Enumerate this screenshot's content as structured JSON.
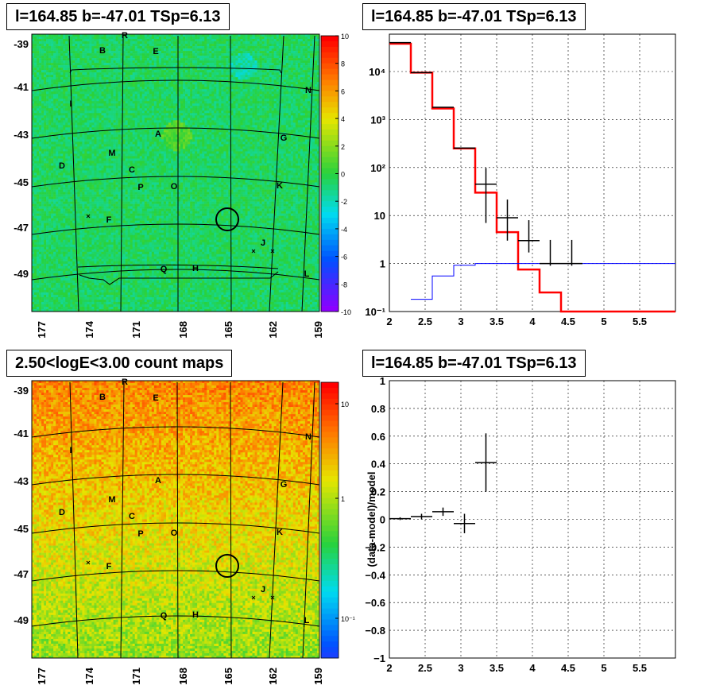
{
  "panels": {
    "top_left": {
      "title": "l=164.85 b=-47.01 TSp=6.13"
    },
    "top_right": {
      "title": "l=164.85 b=-47.01 TSp=6.13"
    },
    "bottom_left": {
      "title": "2.50<logE<3.00 count maps"
    },
    "bottom_right": {
      "title": "l=164.85 b=-47.01 TSp=6.13"
    }
  },
  "chart_data": [
    {
      "type": "heatmap",
      "panel": "top_left",
      "title": "l=164.85 b=-47.01 TSp=6.13",
      "x_ticks": [
        "177",
        "174",
        "171",
        "168",
        "165",
        "162",
        "159"
      ],
      "y_ticks": [
        "-39",
        "-41",
        "-43",
        "-45",
        "-47",
        "-49"
      ],
      "colorbar_ticks": [
        "10",
        "8",
        "6",
        "4",
        "2",
        "0",
        "-2",
        "-4",
        "-6",
        "-8",
        "-10"
      ],
      "source_labels": [
        "R",
        "B",
        "E",
        "N",
        "I",
        "A",
        "G",
        "M",
        "D",
        "C",
        "K",
        "P",
        "O",
        "F",
        "J",
        "Q",
        "H",
        "L"
      ]
    },
    {
      "type": "line",
      "panel": "top_right",
      "title": "l=164.85 b=-47.01 TSp=6.13",
      "xlim": [
        2,
        6
      ],
      "ylim": [
        0.1,
        60000
      ],
      "log_y": true,
      "grid": true,
      "x_ticks": [
        "2",
        "2.5",
        "3",
        "3.5",
        "4",
        "4.5",
        "5",
        "5.5"
      ],
      "y_ticks": [
        "10⁻¹",
        "1",
        "10",
        "10²",
        "10³",
        "10⁴"
      ],
      "series": [
        {
          "color": "#ff0000",
          "bins": [
            2,
            2.3,
            2.6,
            2.9,
            3.2,
            3.5,
            3.8,
            4.1,
            4.4,
            6
          ],
          "values": [
            38000,
            9500,
            1700,
            250,
            30,
            4.5,
            0.75,
            0.25,
            0.1
          ]
        },
        {
          "color": "#0000ff",
          "bins": [
            2.3,
            2.6,
            2.9,
            3.2,
            6
          ],
          "values": [
            0.18,
            0.55,
            0.92,
            1.0
          ]
        }
      ],
      "data_points": [
        {
          "x": 2.15,
          "y": 40000,
          "xerr": 0.15,
          "yerr_lo": 0,
          "yerr_hi": 0
        },
        {
          "x": 2.45,
          "y": 9500,
          "xerr": 0.15,
          "yerr_lo": 0,
          "yerr_hi": 0
        },
        {
          "x": 2.75,
          "y": 1800,
          "xerr": 0.15,
          "yerr_lo": 0,
          "yerr_hi": 0
        },
        {
          "x": 3.05,
          "y": 255,
          "xerr": 0.15,
          "yerr_lo": 0,
          "yerr_hi": 0
        },
        {
          "x": 3.35,
          "y": 45,
          "xerr": 0.15,
          "yerr_lo": 38,
          "yerr_hi": 53
        },
        {
          "x": 3.65,
          "y": 9,
          "xerr": 0.15,
          "yerr_lo": 6,
          "yerr_hi": 12.5
        },
        {
          "x": 3.95,
          "y": 3,
          "xerr": 0.15,
          "yerr_lo": 1.3,
          "yerr_hi": 5
        },
        {
          "x": 4.25,
          "y": 1,
          "xerr": 0.15,
          "yerr_lo": 0.1,
          "yerr_hi": 2.1
        },
        {
          "x": 4.55,
          "y": 1,
          "xerr": 0.15,
          "yerr_lo": 0.1,
          "yerr_hi": 2.1
        }
      ]
    },
    {
      "type": "heatmap",
      "panel": "bottom_left",
      "title": "2.50<logE<3.00 count maps",
      "x_ticks": [
        "177",
        "174",
        "171",
        "168",
        "165",
        "162",
        "159"
      ],
      "y_ticks": [
        "-39",
        "-41",
        "-43",
        "-45",
        "-47",
        "-49"
      ],
      "colorbar_ticks": [
        "10",
        "1",
        "10⁻¹"
      ],
      "source_labels": [
        "R",
        "B",
        "E",
        "N",
        "I",
        "A",
        "G",
        "M",
        "D",
        "C",
        "K",
        "P",
        "O",
        "F",
        "J",
        "Q",
        "H",
        "L"
      ]
    },
    {
      "type": "scatter",
      "panel": "bottom_right",
      "title": "l=164.85 b=-47.01 TSp=6.13",
      "ylabel": "(data-model)/model",
      "xlim": [
        2,
        6
      ],
      "ylim": [
        -1,
        1
      ],
      "grid": true,
      "x_ticks": [
        "2",
        "2.5",
        "3",
        "3.5",
        "4",
        "4.5",
        "5",
        "5.5"
      ],
      "y_ticks": [
        "1",
        "0.8",
        "0.6",
        "0.4",
        "0.2",
        "0",
        "−0.2",
        "−0.4",
        "−0.6",
        "−0.8",
        "−1"
      ],
      "points": [
        {
          "x": 2.15,
          "y": 0.005,
          "xerr": 0.15,
          "yerr": 0.01
        },
        {
          "x": 2.45,
          "y": 0.02,
          "xerr": 0.15,
          "yerr": 0.02
        },
        {
          "x": 2.75,
          "y": 0.055,
          "xerr": 0.15,
          "yerr": 0.03
        },
        {
          "x": 3.05,
          "y": -0.03,
          "xerr": 0.15,
          "yerr": 0.07
        },
        {
          "x": 3.35,
          "y": 0.41,
          "xerr": 0.15,
          "yerr": 0.21
        }
      ]
    }
  ]
}
